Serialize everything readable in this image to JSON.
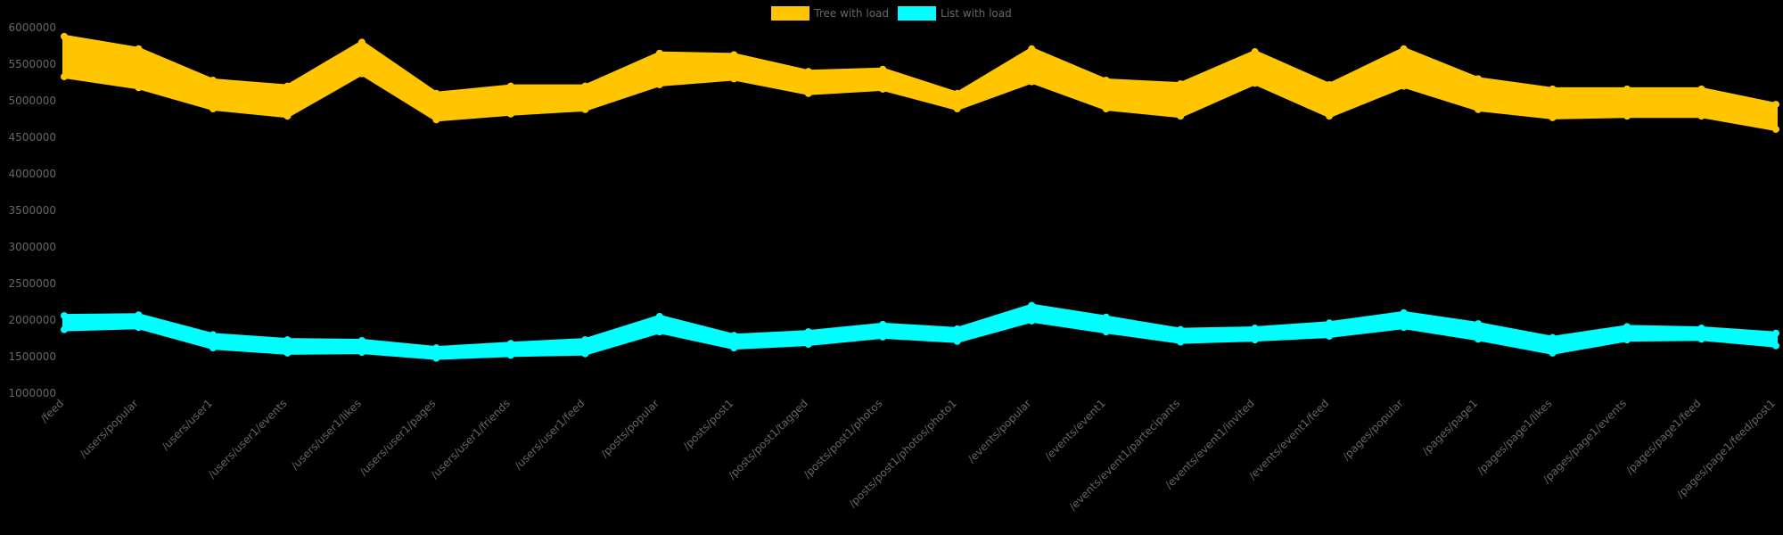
{
  "chart_data": {
    "type": "line",
    "title": "",
    "xlabel": "",
    "ylabel": "",
    "ylim": [
      1000000,
      6000000
    ],
    "grid": false,
    "legend_position": "top-center",
    "y_ticks": [
      "6000000",
      "5500000",
      "5000000",
      "4500000",
      "4000000",
      "3500000",
      "3000000",
      "2500000",
      "2000000",
      "1500000",
      "1000000"
    ],
    "categories": [
      "/feed",
      "/users/popular",
      "/users/user1",
      "/users/user1/events",
      "/users/user1/likes",
      "/users/user1/pages",
      "/users/user1/friends",
      "/users/user1/feed",
      "/posts/popular",
      "/posts/post1",
      "/posts/post1/tagged",
      "/posts/post1/photos",
      "/posts/post1/photos/photo1",
      "/events/popular",
      "/events/event1",
      "/events/event1/partecipants",
      "/events/event1/invited",
      "/events/event1/feed",
      "/pages/popular",
      "/pages/page1",
      "/pages/page1/likes",
      "/pages/page1/events",
      "/pages/page1/feed",
      "/pages/page1/feed/post1"
    ],
    "series": [
      {
        "name": "Tree with load",
        "color": "#ffc600",
        "note": "many overlapping runs; band min/max shown",
        "max": [
          5880000,
          5710000,
          5280000,
          5200000,
          5800000,
          5100000,
          5200000,
          5200000,
          5650000,
          5630000,
          5400000,
          5430000,
          5100000,
          5710000,
          5280000,
          5230000,
          5670000,
          5220000,
          5710000,
          5300000,
          5160000,
          5160000,
          5160000,
          4950000
        ],
        "min": [
          5330000,
          5180000,
          4890000,
          4790000,
          5370000,
          4740000,
          4820000,
          4880000,
          5220000,
          5300000,
          5100000,
          5160000,
          4890000,
          5260000,
          4890000,
          4790000,
          5240000,
          4790000,
          5200000,
          4880000,
          4770000,
          4790000,
          4790000,
          4610000
        ]
      },
      {
        "name": "List with load",
        "color": "#00ffff",
        "note": "many overlapping runs; band min/max shown",
        "max": [
          2060000,
          2070000,
          1800000,
          1730000,
          1720000,
          1620000,
          1680000,
          1730000,
          2050000,
          1790000,
          1840000,
          1940000,
          1880000,
          2200000,
          2040000,
          1870000,
          1890000,
          1960000,
          2100000,
          1950000,
          1760000,
          1910000,
          1890000,
          1820000
        ],
        "min": [
          1870000,
          1900000,
          1620000,
          1550000,
          1560000,
          1480000,
          1520000,
          1540000,
          1840000,
          1620000,
          1670000,
          1770000,
          1710000,
          1990000,
          1840000,
          1700000,
          1730000,
          1780000,
          1900000,
          1740000,
          1550000,
          1730000,
          1740000,
          1650000
        ]
      }
    ]
  },
  "legend": {
    "items": [
      {
        "label": "Tree with load",
        "color": "#ffc600"
      },
      {
        "label": "List with load",
        "color": "#00ffff"
      }
    ]
  }
}
